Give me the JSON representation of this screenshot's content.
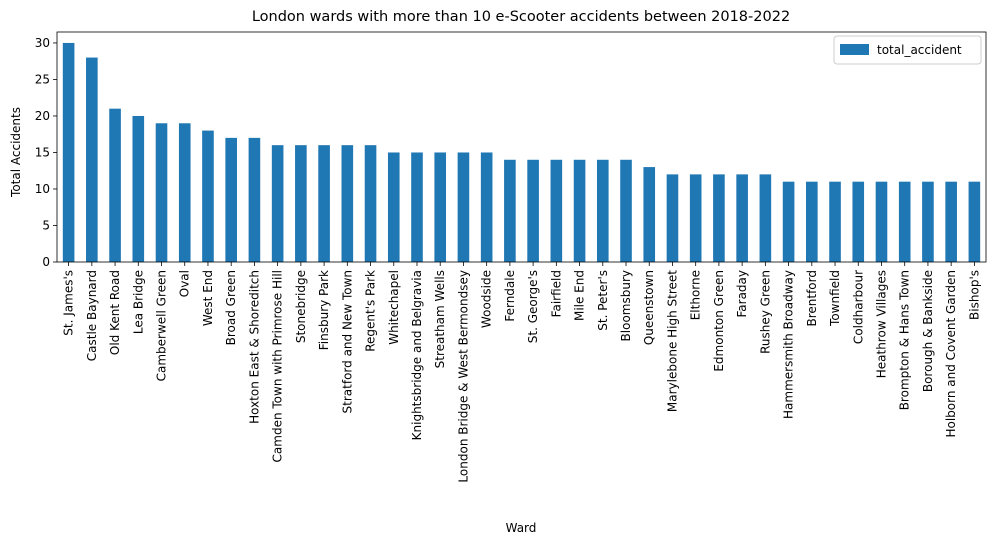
{
  "chart_data": {
    "type": "bar",
    "title": "London wards with more than 10 e-Scooter accidents between 2018-2022",
    "xlabel": "Ward",
    "ylabel": "Total Accidents",
    "ylim": [
      0,
      31.5
    ],
    "yticks": [
      0,
      5,
      10,
      15,
      20,
      25,
      30
    ],
    "grid": false,
    "legend_position": "top-right",
    "bar_color": "#1f77b4",
    "categories": [
      "St. James's",
      "Castle Baynard",
      "Old Kent Road",
      "Lea Bridge",
      "Camberwell Green",
      "Oval",
      "West End",
      "Broad Green",
      "Hoxton East & Shoreditch",
      "Camden Town with Primrose Hill",
      "Stonebridge",
      "Finsbury Park",
      "Stratford and New Town",
      "Regent's Park",
      "Whitechapel",
      "Knightsbridge and Belgravia",
      "Streatham Wells",
      "London Bridge & West Bermondsey",
      "Woodside",
      "Ferndale",
      "St. George's",
      "Fairfield",
      "Mile End",
      "St. Peter's",
      "Bloomsbury",
      "Queenstown",
      "Marylebone High Street",
      "Elthorne",
      "Edmonton Green",
      "Faraday",
      "Rushey Green",
      "Hammersmith Broadway",
      "Brentford",
      "Townfield",
      "Coldharbour",
      "Heathrow Villages",
      "Brompton & Hans Town",
      "Borough & Bankside",
      "Holborn and Covent Garden",
      "Bishop's"
    ],
    "series": [
      {
        "name": "total_accident",
        "values": [
          30,
          28,
          21,
          20,
          19,
          19,
          18,
          17,
          17,
          16,
          16,
          16,
          16,
          16,
          15,
          15,
          15,
          15,
          15,
          14,
          14,
          14,
          14,
          14,
          14,
          13,
          12,
          12,
          12,
          12,
          12,
          11,
          11,
          11,
          11,
          11,
          11,
          11,
          11,
          11
        ]
      }
    ]
  }
}
